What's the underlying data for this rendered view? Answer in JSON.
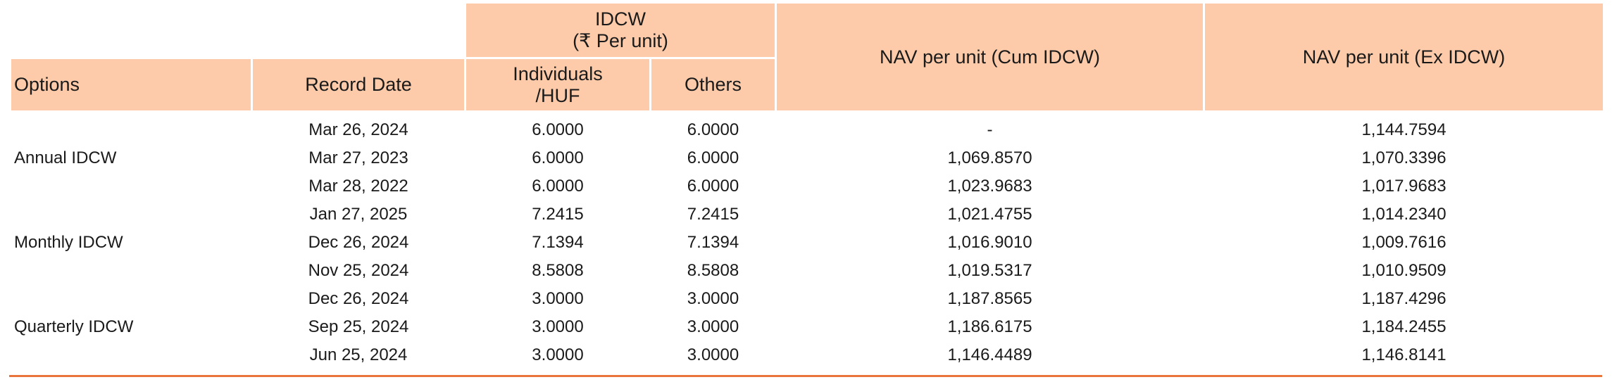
{
  "table": {
    "header": {
      "idcw_group": "IDCW",
      "idcw_unit": "(₹ Per unit)",
      "options": "Options",
      "record_date": "Record Date",
      "individuals_line1": "Individuals",
      "individuals_line2": "/HUF",
      "others": "Others",
      "nav_cum": "NAV per unit (Cum IDCW)",
      "nav_ex": "NAV per unit (Ex IDCW)"
    },
    "groups": [
      {
        "option": "Annual IDCW",
        "rows": [
          {
            "record_date": "Mar 26, 2024",
            "individuals": "6.0000",
            "others": "6.0000",
            "nav_cum": "-",
            "nav_ex": "1,144.7594"
          },
          {
            "record_date": "Mar 27, 2023",
            "individuals": "6.0000",
            "others": "6.0000",
            "nav_cum": "1,069.8570",
            "nav_ex": "1,070.3396"
          },
          {
            "record_date": "Mar 28, 2022",
            "individuals": "6.0000",
            "others": "6.0000",
            "nav_cum": "1,023.9683",
            "nav_ex": "1,017.9683"
          }
        ]
      },
      {
        "option": "Monthly IDCW",
        "rows": [
          {
            "record_date": "Jan 27, 2025",
            "individuals": "7.2415",
            "others": "7.2415",
            "nav_cum": "1,021.4755",
            "nav_ex": "1,014.2340"
          },
          {
            "record_date": "Dec 26, 2024",
            "individuals": "7.1394",
            "others": "7.1394",
            "nav_cum": "1,016.9010",
            "nav_ex": "1,009.7616"
          },
          {
            "record_date": "Nov 25, 2024",
            "individuals": "8.5808",
            "others": "8.5808",
            "nav_cum": "1,019.5317",
            "nav_ex": "1,010.9509"
          }
        ]
      },
      {
        "option": "Quarterly IDCW",
        "rows": [
          {
            "record_date": "Dec 26, 2024",
            "individuals": "3.0000",
            "others": "3.0000",
            "nav_cum": "1,187.8565",
            "nav_ex": "1,187.4296"
          },
          {
            "record_date": "Sep 25, 2024",
            "individuals": "3.0000",
            "others": "3.0000",
            "nav_cum": "1,186.6175",
            "nav_ex": "1,184.2455"
          },
          {
            "record_date": "Jun 25, 2024",
            "individuals": "3.0000",
            "others": "3.0000",
            "nav_cum": "1,146.4489",
            "nav_ex": "1,146.8141"
          }
        ]
      }
    ],
    "colors": {
      "header_fill": "#fdcbaa",
      "bottom_rule": "#e9743c"
    }
  }
}
